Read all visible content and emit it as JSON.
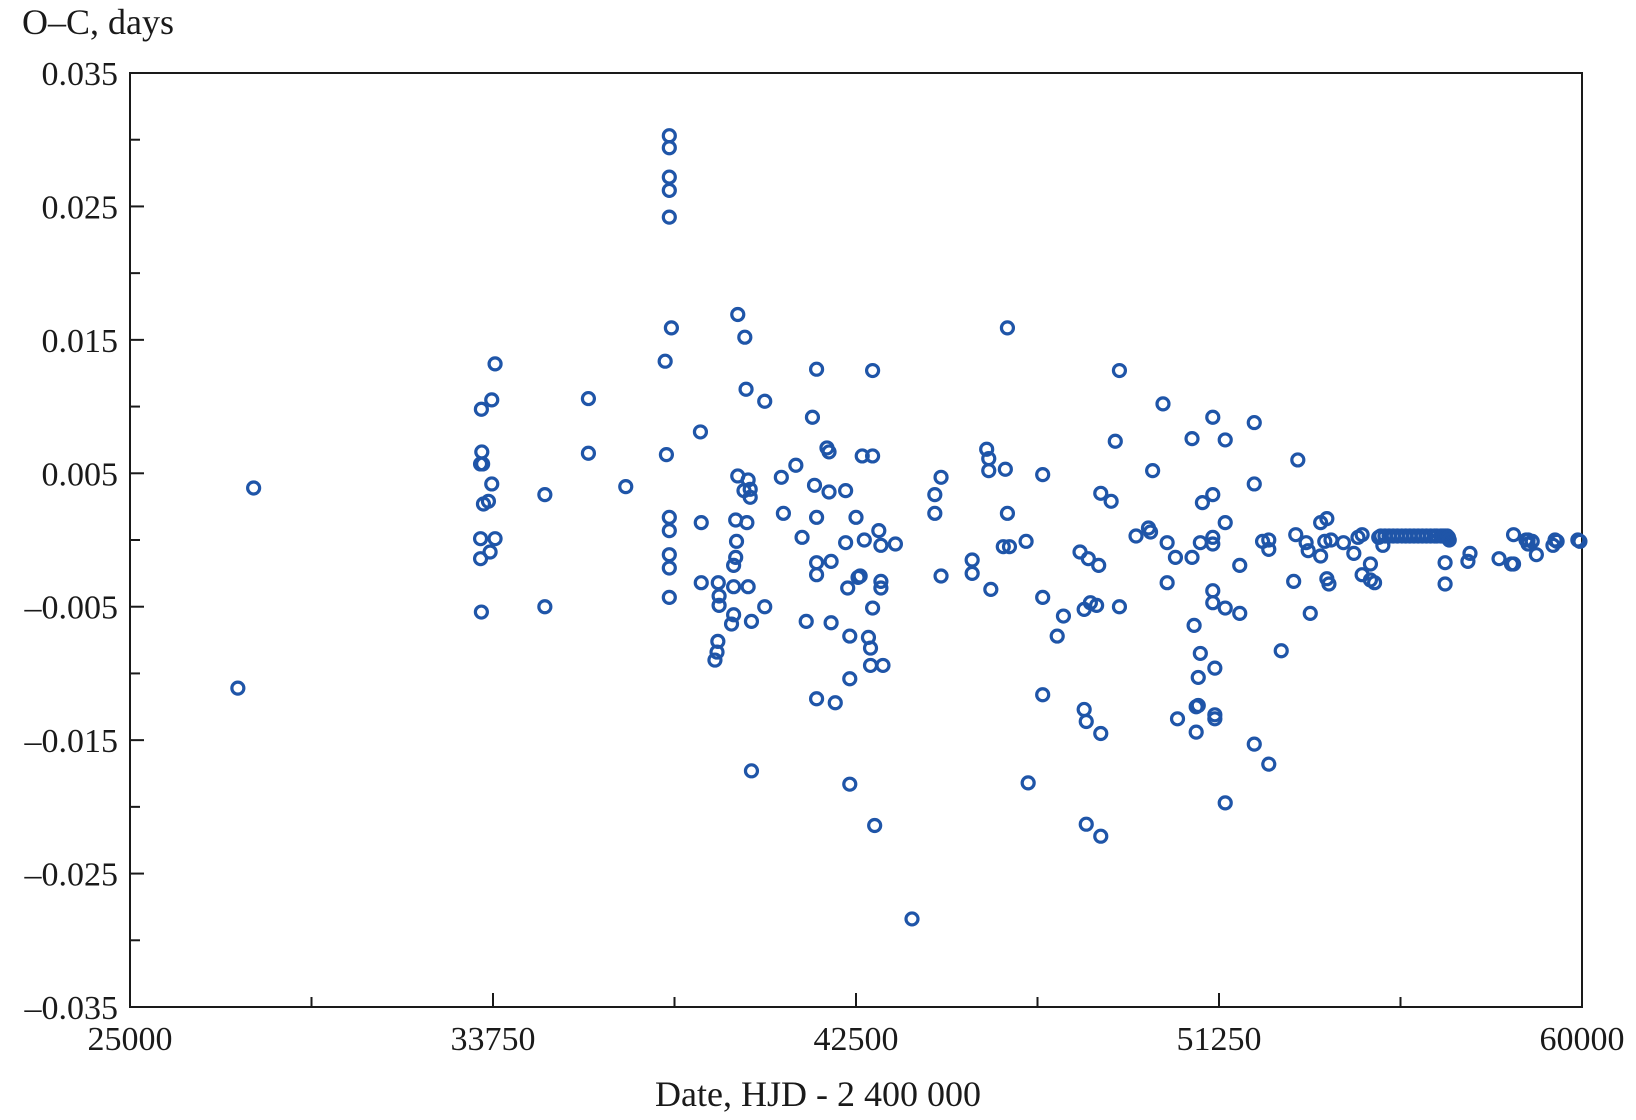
{
  "chart_data": {
    "type": "scatter",
    "title": "",
    "xlabel": "Date, HJD - 2 400 000",
    "ylabel": "O–C, days",
    "xlim": [
      25000,
      60000
    ],
    "ylim": [
      -0.035,
      0.035
    ],
    "grid": false,
    "legend": "none",
    "colors": {
      "marker": "#1f55a8",
      "axis": "#1a1a1a"
    },
    "x_ticks": [
      25000,
      33750,
      42500,
      51250,
      60000
    ],
    "x_tick_labels": [
      "25000",
      "33750",
      "42500",
      "51250",
      "60000"
    ],
    "x_minor_ticks": [
      29375,
      38125,
      46875,
      55625
    ],
    "y_ticks": [
      0.035,
      0.025,
      0.015,
      0.005,
      -0.005,
      -0.015,
      -0.025,
      -0.035
    ],
    "y_tick_labels": [
      "0.035",
      "0.025",
      "0.015",
      "0.005",
      "–0.005",
      "–0.015",
      "–0.025",
      "–0.035"
    ],
    "y_minor_ticks": [
      0.03,
      0.02,
      0.01,
      0.0,
      -0.01,
      -0.02,
      -0.03
    ],
    "series": [
      {
        "marker": "open-circle",
        "points": [
          [
            27600,
            -0.0111
          ],
          [
            27980,
            0.0039
          ],
          [
            33450,
            0.0057
          ],
          [
            33480,
            0.0066
          ],
          [
            33500,
            0.0057
          ],
          [
            33470,
            0.0098
          ],
          [
            33520,
            0.0027
          ],
          [
            33450,
            0.0001
          ],
          [
            33450,
            -0.0014
          ],
          [
            33470,
            -0.0054
          ],
          [
            33640,
            0.0029
          ],
          [
            33680,
            -0.0009
          ],
          [
            33720,
            0.0042
          ],
          [
            33720,
            0.0105
          ],
          [
            33800,
            0.0132
          ],
          [
            33800,
            0.0001
          ],
          [
            35000,
            0.0034
          ],
          [
            35000,
            -0.005
          ],
          [
            36050,
            0.0106
          ],
          [
            36050,
            0.0065
          ],
          [
            36950,
            0.004
          ],
          [
            37900,
            0.0134
          ],
          [
            37930,
            0.0064
          ],
          [
            38000,
            0.0303
          ],
          [
            38000,
            0.0294
          ],
          [
            38000,
            0.0272
          ],
          [
            38000,
            0.0262
          ],
          [
            38000,
            0.0242
          ],
          [
            38050,
            0.0159
          ],
          [
            38000,
            0.0017
          ],
          [
            38000,
            0.0007
          ],
          [
            38000,
            -0.0011
          ],
          [
            38000,
            -0.0021
          ],
          [
            38000,
            -0.0043
          ],
          [
            38750,
            0.0081
          ],
          [
            38770,
            0.0013
          ],
          [
            38770,
            -0.0032
          ],
          [
            39100,
            -0.009
          ],
          [
            39150,
            -0.0084
          ],
          [
            39170,
            -0.0076
          ],
          [
            39180,
            -0.0032
          ],
          [
            39200,
            -0.0042
          ],
          [
            39200,
            -0.0049
          ],
          [
            39500,
            -0.0063
          ],
          [
            39550,
            -0.0056
          ],
          [
            39550,
            -0.0035
          ],
          [
            39550,
            -0.0019
          ],
          [
            39600,
            -0.0013
          ],
          [
            39600,
            0.0015
          ],
          [
            39620,
            -0.0001
          ],
          [
            39650,
            0.0169
          ],
          [
            39650,
            0.0048
          ],
          [
            39800,
            0.0037
          ],
          [
            39820,
            0.0152
          ],
          [
            39850,
            0.0113
          ],
          [
            39870,
            0.0013
          ],
          [
            39900,
            -0.0035
          ],
          [
            39900,
            0.0045
          ],
          [
            39950,
            0.0032
          ],
          [
            39950,
            0.0038
          ],
          [
            39980,
            -0.0061
          ],
          [
            39980,
            -0.0173
          ],
          [
            40300,
            0.0104
          ],
          [
            40300,
            -0.005
          ],
          [
            40700,
            0.0047
          ],
          [
            40750,
            0.002
          ],
          [
            41050,
            0.0056
          ],
          [
            41200,
            0.0002
          ],
          [
            41300,
            -0.0061
          ],
          [
            41450,
            0.0092
          ],
          [
            41500,
            0.0041
          ],
          [
            41550,
            0.0128
          ],
          [
            41550,
            0.0017
          ],
          [
            41550,
            -0.0017
          ],
          [
            41550,
            -0.0026
          ],
          [
            41550,
            -0.0119
          ],
          [
            41800,
            0.0069
          ],
          [
            41850,
            0.0036
          ],
          [
            41850,
            0.0066
          ],
          [
            41900,
            -0.0016
          ],
          [
            41900,
            -0.0062
          ],
          [
            42000,
            -0.0122
          ],
          [
            42250,
            0.0037
          ],
          [
            42250,
            -0.0002
          ],
          [
            42300,
            -0.0036
          ],
          [
            42350,
            -0.0072
          ],
          [
            42350,
            -0.0104
          ],
          [
            42350,
            -0.0183
          ],
          [
            42500,
            0.0017
          ],
          [
            42550,
            -0.0028
          ],
          [
            42600,
            -0.0027
          ],
          [
            42650,
            0.0063
          ],
          [
            42700,
            0.0
          ],
          [
            42800,
            -0.0073
          ],
          [
            42850,
            -0.0081
          ],
          [
            42850,
            -0.0094
          ],
          [
            42900,
            0.0127
          ],
          [
            42900,
            0.0063
          ],
          [
            42900,
            -0.0051
          ],
          [
            42950,
            -0.0214
          ],
          [
            43050,
            0.0007
          ],
          [
            43100,
            -0.0004
          ],
          [
            43100,
            -0.0031
          ],
          [
            43100,
            -0.0036
          ],
          [
            43150,
            -0.0094
          ],
          [
            43450,
            -0.0003
          ],
          [
            43850,
            -0.0284
          ],
          [
            44400,
            0.0034
          ],
          [
            44400,
            0.002
          ],
          [
            44550,
            0.0047
          ],
          [
            44550,
            -0.0027
          ],
          [
            45300,
            -0.0025
          ],
          [
            45300,
            -0.0015
          ],
          [
            45650,
            0.0068
          ],
          [
            45700,
            0.0061
          ],
          [
            45700,
            0.0052
          ],
          [
            45750,
            -0.0037
          ],
          [
            46050,
            -0.0005
          ],
          [
            46100,
            0.0053
          ],
          [
            46150,
            0.0159
          ],
          [
            46150,
            0.002
          ],
          [
            46200,
            -0.0005
          ],
          [
            46600,
            -0.0001
          ],
          [
            46650,
            -0.0182
          ],
          [
            47000,
            0.0049
          ],
          [
            47000,
            -0.0043
          ],
          [
            47000,
            -0.0116
          ],
          [
            47350,
            -0.0072
          ],
          [
            47500,
            -0.0057
          ],
          [
            47900,
            -0.0009
          ],
          [
            48000,
            -0.0052
          ],
          [
            48000,
            -0.0127
          ],
          [
            48050,
            -0.0136
          ],
          [
            48050,
            -0.0213
          ],
          [
            48100,
            -0.0014
          ],
          [
            48150,
            -0.0047
          ],
          [
            48300,
            -0.0049
          ],
          [
            48350,
            -0.0019
          ],
          [
            48400,
            0.0035
          ],
          [
            48400,
            -0.0145
          ],
          [
            48400,
            -0.0222
          ],
          [
            48650,
            0.0029
          ],
          [
            48750,
            0.0074
          ],
          [
            48850,
            0.0127
          ],
          [
            48850,
            -0.005
          ],
          [
            49250,
            0.0003
          ],
          [
            49550,
            0.0009
          ],
          [
            49600,
            0.0006
          ],
          [
            49650,
            0.0052
          ],
          [
            49900,
            0.0102
          ],
          [
            50000,
            -0.0002
          ],
          [
            50000,
            -0.0032
          ],
          [
            50200,
            -0.0013
          ],
          [
            50250,
            -0.0134
          ],
          [
            50600,
            0.0076
          ],
          [
            50600,
            -0.0013
          ],
          [
            50650,
            -0.0064
          ],
          [
            50700,
            -0.0125
          ],
          [
            50700,
            -0.0144
          ],
          [
            50750,
            -0.0124
          ],
          [
            50750,
            -0.0103
          ],
          [
            50800,
            -0.0085
          ],
          [
            50800,
            -0.0002
          ],
          [
            50850,
            0.0028
          ],
          [
            51100,
            0.0092
          ],
          [
            51100,
            0.0034
          ],
          [
            51100,
            0.0002
          ],
          [
            51100,
            -0.0003
          ],
          [
            51100,
            -0.0038
          ],
          [
            51100,
            -0.0047
          ],
          [
            51150,
            -0.0096
          ],
          [
            51150,
            -0.0131
          ],
          [
            51150,
            -0.0134
          ],
          [
            51400,
            0.0075
          ],
          [
            51400,
            0.0013
          ],
          [
            51400,
            -0.0051
          ],
          [
            51400,
            -0.0197
          ],
          [
            51750,
            -0.0019
          ],
          [
            51750,
            -0.0055
          ],
          [
            52100,
            0.0088
          ],
          [
            52100,
            0.0042
          ],
          [
            52100,
            -0.0153
          ],
          [
            52300,
            -0.0001
          ],
          [
            52450,
            0.0
          ],
          [
            52450,
            -0.0007
          ],
          [
            52450,
            -0.0168
          ],
          [
            52750,
            -0.0083
          ],
          [
            53050,
            -0.0031
          ],
          [
            53100,
            0.0004
          ],
          [
            53150,
            0.006
          ],
          [
            53350,
            -0.0002
          ],
          [
            53400,
            -0.0008
          ],
          [
            53450,
            -0.0055
          ],
          [
            53700,
            0.0013
          ],
          [
            53700,
            -0.0012
          ],
          [
            53800,
            -0.0001
          ],
          [
            53850,
            0.0016
          ],
          [
            53850,
            -0.0029
          ],
          [
            53900,
            -0.0033
          ],
          [
            53950,
            0.0
          ],
          [
            54250,
            -0.0002
          ],
          [
            54500,
            -0.001
          ],
          [
            54600,
            0.0002
          ],
          [
            54700,
            0.0004
          ],
          [
            54700,
            -0.0026
          ],
          [
            54900,
            -0.0018
          ],
          [
            54900,
            -0.003
          ],
          [
            55000,
            -0.0032
          ],
          [
            55100,
            0.0002
          ],
          [
            55200,
            -0.0004
          ],
          [
            55150,
            0.0003
          ],
          [
            55250,
            0.0003
          ],
          [
            55350,
            0.0003
          ],
          [
            55450,
            0.0003
          ],
          [
            55550,
            0.0003
          ],
          [
            55650,
            0.0003
          ],
          [
            55750,
            0.0003
          ],
          [
            55850,
            0.0003
          ],
          [
            55950,
            0.0003
          ],
          [
            56050,
            0.0003
          ],
          [
            56150,
            0.0003
          ],
          [
            56250,
            0.0003
          ],
          [
            56350,
            0.0003
          ],
          [
            56450,
            0.0003
          ],
          [
            56500,
            0.0003
          ],
          [
            56600,
            0.0003
          ],
          [
            56650,
            0.0003
          ],
          [
            56700,
            0.0003
          ],
          [
            56750,
            0.0003
          ],
          [
            56780,
            0.0002
          ],
          [
            56800,
            0.0
          ],
          [
            56700,
            -0.0033
          ],
          [
            56700,
            -0.0017
          ],
          [
            57250,
            -0.0016
          ],
          [
            57300,
            -0.001
          ],
          [
            58000,
            -0.0014
          ],
          [
            58300,
            -0.0018
          ],
          [
            58350,
            -0.0018
          ],
          [
            58350,
            0.0004
          ],
          [
            58650,
            0.0
          ],
          [
            58700,
            -0.0003
          ],
          [
            58700,
            0.0
          ],
          [
            58800,
            -0.0001
          ],
          [
            58900,
            -0.0011
          ],
          [
            59300,
            -0.0004
          ],
          [
            59350,
            0.0
          ],
          [
            59400,
            -0.0001
          ],
          [
            59900,
            0.0
          ],
          [
            59950,
            -0.0001
          ]
        ]
      }
    ]
  }
}
